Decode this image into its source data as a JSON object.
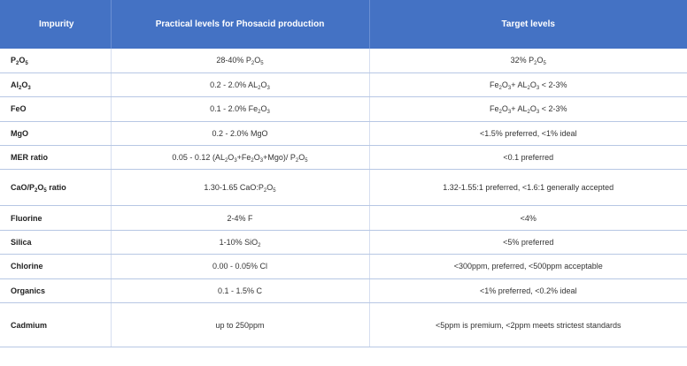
{
  "header": {
    "col1": "Impurity",
    "col2": "Practical levels for Phosacid production",
    "col3": "Target levels"
  },
  "rows": [
    {
      "name": [
        "P",
        "2",
        "O",
        "5"
      ],
      "practical": [
        "28-40% P",
        "2",
        "O",
        "5"
      ],
      "target": [
        "32% P",
        "2",
        "O",
        "5"
      ]
    },
    {
      "name": [
        "Al",
        "2",
        "O",
        "3"
      ],
      "practical": [
        "0.2 - 2.0% AL",
        "2",
        "O",
        "3"
      ],
      "target": [
        "Fe",
        "2",
        "O",
        "3",
        "+ AL",
        "2",
        "O",
        "3",
        " < 2-3%"
      ]
    },
    {
      "name": [
        "FeO"
      ],
      "practical": [
        "0.1 - 2.0% Fe",
        "2",
        "O",
        "3"
      ],
      "target": [
        "Fe",
        "2",
        "O",
        "3",
        "+ AL",
        "2",
        "O",
        "3",
        " < 2-3%"
      ]
    },
    {
      "name": [
        "MgO"
      ],
      "practical": [
        "0.2 - 2.0% MgO"
      ],
      "target": [
        "<1.5% preferred, <1% ideal"
      ]
    },
    {
      "name": [
        "MER ratio"
      ],
      "practical": [
        "0.05 - 0.12 (AL",
        "2",
        "O",
        "3",
        "+Fe",
        "2",
        "O",
        "3",
        "+Mgo)/  P",
        "2",
        "O",
        "5"
      ],
      "target": [
        "<0.1 preferred"
      ]
    },
    {
      "name": [
        "CaO/P",
        "2",
        "O",
        "5",
        " ratio"
      ],
      "practical": [
        "1.30-1.65 CaO:P",
        "2",
        "O",
        "5"
      ],
      "target": [
        "1.32-1.55:1 preferred, <1.6:1 generally accepted"
      ]
    },
    {
      "name": [
        "Fluorine"
      ],
      "practical": [
        "2-4% F"
      ],
      "target": [
        "<4%"
      ]
    },
    {
      "name": [
        "Silica"
      ],
      "practical": [
        "1-10% SiO",
        "2"
      ],
      "target": [
        "<5% preferred"
      ]
    },
    {
      "name": [
        "Chlorine"
      ],
      "practical": [
        "0.00 - 0.05% Cl"
      ],
      "target": [
        "<300ppm, preferred, <500ppm acceptable"
      ]
    },
    {
      "name": [
        "Organics"
      ],
      "practical": [
        "0.1 - 1.5% C"
      ],
      "target": [
        "<1% preferred, <0.2% ideal"
      ]
    },
    {
      "name": [
        "Cadmium"
      ],
      "practical": [
        "up to 250ppm"
      ],
      "target": [
        "<5ppm is premium, <2ppm meets strictest standards"
      ]
    }
  ]
}
